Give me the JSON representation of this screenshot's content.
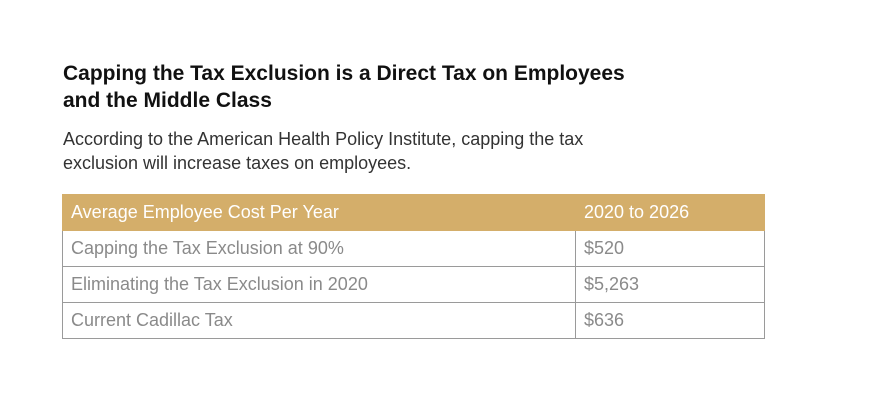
{
  "title": "Capping the Tax Exclusion is a Direct Tax on Employees\n and the Middle Class",
  "subtitle": "According to the American Health Policy Institute, capping the tax exclusion will increase taxes on employees.",
  "colors": {
    "header_background": "#d4ae6a",
    "header_text": "#ffffff",
    "cell_text": "#8a8a8a",
    "border": "#9a9a9a"
  },
  "table": {
    "headers": [
      "Average Employee Cost Per Year",
      "2020 to 2026"
    ],
    "rows": [
      [
        "Capping the Tax Exclusion at 90%",
        "$520"
      ],
      [
        "Eliminating the Tax Exclusion in 2020",
        "$5,263"
      ],
      [
        "Current Cadillac Tax",
        "$636"
      ]
    ]
  }
}
